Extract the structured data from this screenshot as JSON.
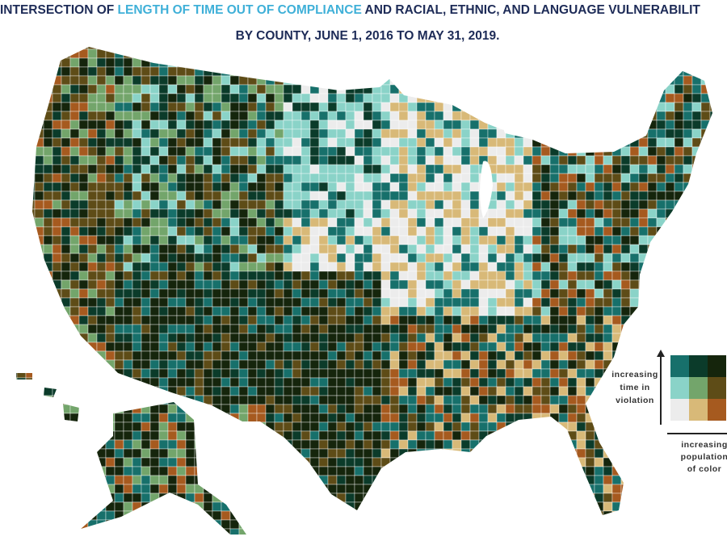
{
  "title": {
    "lead": "INTERSECTION OF",
    "highlight": "LENGTH OF TIME OUT OF COMPLIANCE",
    "rest": "AND RACIAL, ETHNIC, AND LANGUAGE VULNERABILIT",
    "line2": "BY COUNTY, JUNE 1, 2016 TO MAY 31, 2019."
  },
  "legend": {
    "colors": [
      [
        "#17706b",
        "#0b3b2a",
        "#15250c"
      ],
      [
        "#8ad3c8",
        "#73a56b",
        "#5e4c17"
      ],
      [
        "#ececec",
        "#d8b978",
        "#a65a1f"
      ]
    ],
    "vertical_label": [
      "increasing",
      "time in",
      "violation"
    ],
    "horizontal_label": [
      "increasing",
      "population",
      "of color"
    ]
  }
}
